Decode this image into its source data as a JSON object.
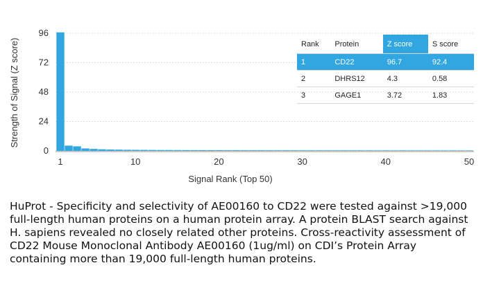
{
  "chart_data": {
    "type": "bar",
    "xlabel": "Signal Rank (Top 50)",
    "ylabel": "Strength of Signal (Z score)",
    "xlim": [
      1,
      50
    ],
    "ylim": [
      0,
      96
    ],
    "x_ticks": [
      "1",
      "10",
      "20",
      "30",
      "40",
      "50"
    ],
    "y_ticks": [
      "0",
      "24",
      "48",
      "72",
      "96"
    ],
    "grid": "horizontal",
    "bar_color": "#32a6e0",
    "x": [
      1,
      2,
      3,
      4,
      5,
      6,
      7,
      8,
      9,
      10,
      11,
      12,
      13,
      14,
      15,
      16,
      17,
      18,
      19,
      20,
      21,
      22,
      23,
      24,
      25,
      26,
      27,
      28,
      29,
      30,
      31,
      32,
      33,
      34,
      35,
      36,
      37,
      38,
      39,
      40,
      41,
      42,
      43,
      44,
      45,
      46,
      47,
      48,
      49,
      50
    ],
    "values": [
      96.7,
      4.3,
      3.72,
      2.0,
      1.6,
      1.3,
      1.1,
      1.0,
      0.9,
      0.85,
      0.8,
      0.75,
      0.7,
      0.68,
      0.65,
      0.62,
      0.6,
      0.58,
      0.56,
      0.55,
      0.54,
      0.53,
      0.52,
      0.51,
      0.5,
      0.49,
      0.48,
      0.47,
      0.46,
      0.45,
      0.45,
      0.44,
      0.44,
      0.43,
      0.43,
      0.42,
      0.42,
      0.41,
      0.41,
      0.4,
      0.4,
      0.4,
      0.39,
      0.39,
      0.39,
      0.38,
      0.38,
      0.38,
      0.37,
      0.37
    ]
  },
  "table": {
    "headers": [
      "Rank",
      "Protein",
      "Z score",
      "S score"
    ],
    "rows": [
      [
        "1",
        "CD22",
        "96.7",
        "92.4"
      ],
      [
        "2",
        "DHRS12",
        "4.3",
        "0.58"
      ],
      [
        "3",
        "GAGE1",
        "3.72",
        "1.83"
      ]
    ]
  },
  "caption": "HuProt  -  Specificity and selectivity of AE00160 to CD22 were tested against >19,000 full-length human proteins on a human protein array. A protein BLAST search against H. sapiens revealed no closely related other proteins. Cross-reactivity assessment of CD22 Mouse Monoclonal Antibody AE00160 (1ug/ml) on CDI’s Protein Array containing more than 19,000 full-length human proteins."
}
